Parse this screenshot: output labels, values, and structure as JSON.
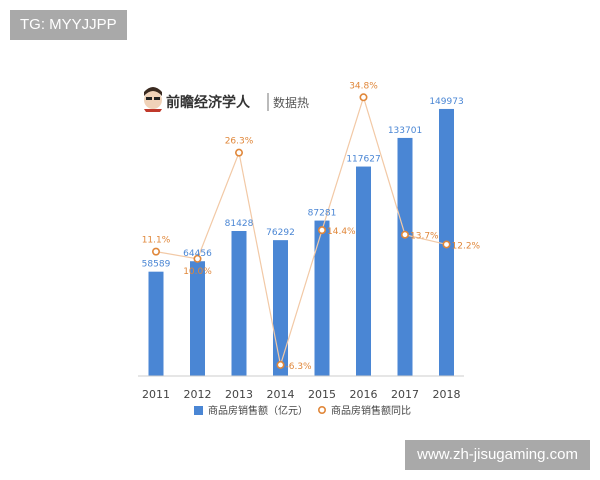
{
  "watermark_top": "TG: MYYJJPP",
  "watermark_bottom": "www.zh-jisugaming.com",
  "brand": {
    "name": "前瞻经济学人",
    "subtitle": "数据热",
    "icon": "avatar-icon"
  },
  "colors": {
    "bar": "#4a86d4",
    "line": "#f2c9a6",
    "marker": "#e0873a",
    "yoy_label": "#e0873a",
    "value_label": "#4a86d4",
    "axis_label": "#444444"
  },
  "chart_data": {
    "type": "bar",
    "categories": [
      "2011",
      "2012",
      "2013",
      "2014",
      "2015",
      "2016",
      "2017",
      "2018"
    ],
    "series": [
      {
        "name": "商品房销售额（亿元）",
        "type": "bar",
        "values": [
          58589,
          64456,
          81428,
          76292,
          87281,
          117627,
          133701,
          149973
        ],
        "labels": [
          "58589",
          "64456",
          "81428",
          "76292",
          "87281",
          "117627",
          "133701",
          "149973"
        ]
      },
      {
        "name": "商品房销售额同比",
        "type": "line",
        "values": [
          11.1,
          10.0,
          26.3,
          -6.3,
          14.4,
          34.8,
          13.7,
          12.2
        ],
        "labels": [
          "11.1%",
          "10.0%",
          "26.3%",
          "-6.3%",
          "14.4%",
          "34.8%",
          "13.7%",
          "12.2%"
        ]
      }
    ],
    "ylim": [
      0,
      155000
    ],
    "y2lim": [
      -8,
      35
    ],
    "legend_position": "bottom",
    "grid": false
  }
}
